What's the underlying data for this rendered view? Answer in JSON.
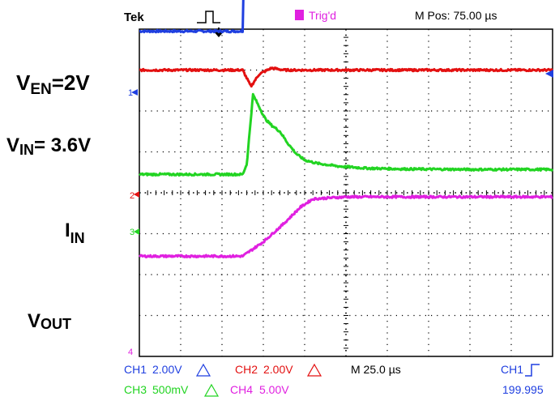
{
  "header": {
    "brand": "Tek",
    "trigger_status": "Trig'd",
    "m_pos": "M Pos: 75.00 µs"
  },
  "labels": {
    "ven": {
      "main": "V",
      "sub": "EN",
      "rest": "=2V"
    },
    "vin": {
      "main": "V",
      "sub": "IN",
      "rest": "= 3.6V"
    },
    "iin": {
      "main": "I",
      "sub": "IN",
      "rest": ""
    },
    "vout": {
      "main": "V",
      "sub": "OUT",
      "rest": ""
    }
  },
  "footer": {
    "ch1": "CH1",
    "ch1_scale": "2.00V",
    "ch2": "CH2",
    "ch2_scale": "2.00V",
    "ch3": "CH3",
    "ch3_scale": "500mV",
    "ch4": "CH4",
    "ch4_scale": "5.00V",
    "timebase": "M 25.0 µs",
    "trigger_source": "CH1",
    "trigger_freq": "199.995"
  },
  "markers": {
    "ch1": "1",
    "ch2": "2",
    "ch3": "3",
    "ch4": "4"
  },
  "colors": {
    "ch1": "#1f3fe0",
    "ch2": "#e31010",
    "ch3": "#22d422",
    "ch4": "#e020e0",
    "grid": "#000000",
    "trigger": "#000000"
  },
  "chart_data": {
    "type": "line",
    "x_divisions": 10,
    "y_divisions": 8,
    "trigger_position_div": 2.5,
    "grid": true,
    "legend": "bottom",
    "series": [
      {
        "name": "CH1",
        "color": "#1f3fe0",
        "x": [
          0,
          2.5,
          2.5,
          10
        ],
        "y": [
          3.95,
          3.95,
          4.95,
          4.95
        ]
      },
      {
        "name": "CH2",
        "color": "#e31010",
        "x": [
          0,
          2.5,
          2.6,
          2.7,
          2.9,
          3.2,
          3.5,
          4.0,
          10
        ],
        "y": [
          3.0,
          3.0,
          2.8,
          2.6,
          2.9,
          3.05,
          3.0,
          3.0,
          3.0
        ]
      },
      {
        "name": "CH3",
        "color": "#22d422",
        "x": [
          0,
          2.5,
          2.6,
          2.75,
          2.9,
          3.05,
          3.2,
          3.4,
          3.6,
          3.8,
          4.0,
          4.3,
          4.8,
          5.5,
          6.5,
          8,
          10
        ],
        "y": [
          0.45,
          0.45,
          0.7,
          2.4,
          2.1,
          1.8,
          1.65,
          1.5,
          1.2,
          0.95,
          0.8,
          0.72,
          0.65,
          0.6,
          0.58,
          0.57,
          0.57
        ]
      },
      {
        "name": "CH4",
        "color": "#e020e0",
        "x": [
          0,
          2.5,
          3.0,
          3.5,
          3.9,
          4.2,
          5,
          6,
          10
        ],
        "y": [
          -1.55,
          -1.55,
          -1.2,
          -0.75,
          -0.35,
          -0.15,
          -0.1,
          -0.1,
          -0.1
        ]
      }
    ]
  }
}
